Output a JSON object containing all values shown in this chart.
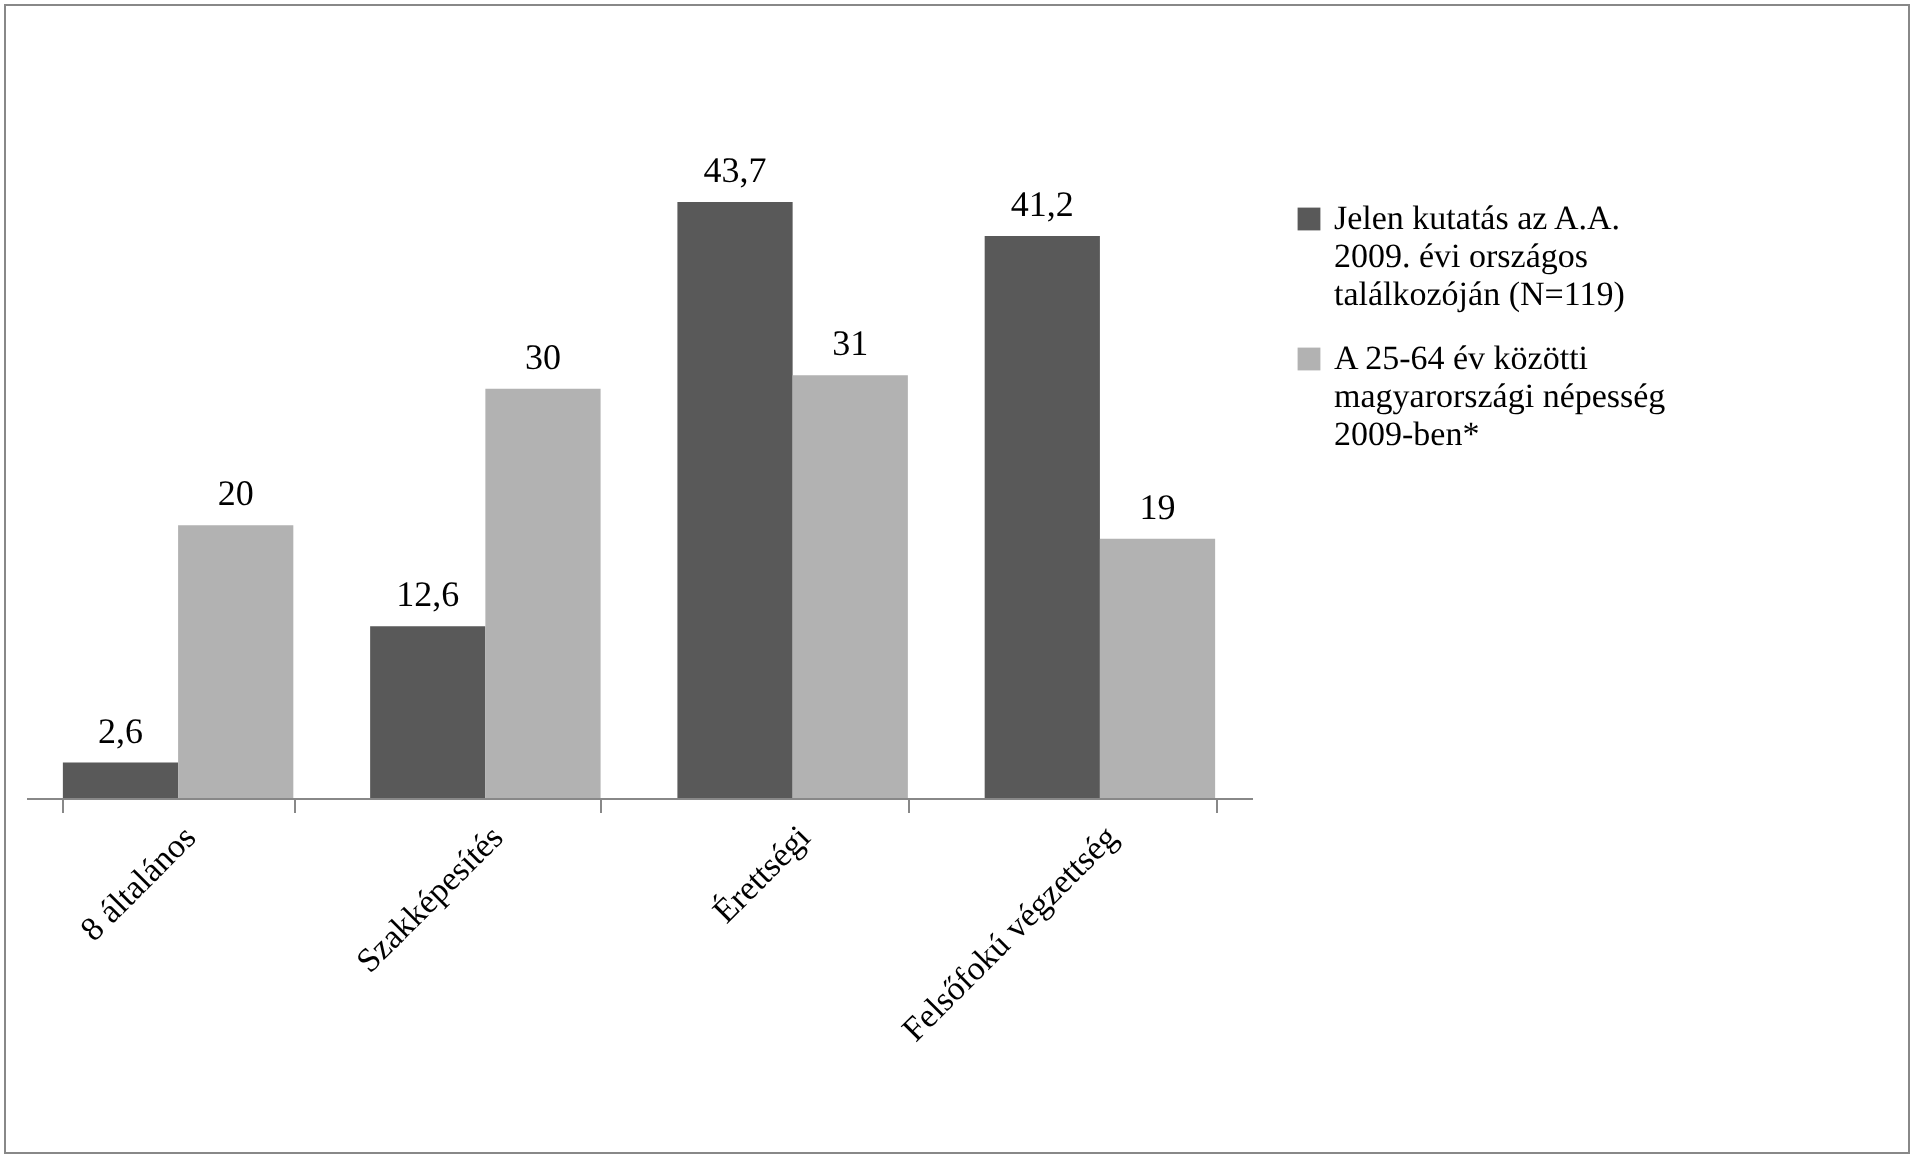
{
  "chart_data": {
    "type": "bar",
    "categories": [
      "8 általános",
      "Szakképesítés",
      "Érettségi",
      "Felsőfokú végzettség"
    ],
    "series": [
      {
        "name": "Jelen kutatás az A.A. 2009. évi országos találkozóján (N=119)",
        "color": "#595959",
        "values": [
          2.6,
          12.6,
          43.7,
          41.2
        ],
        "value_labels": [
          "2,6",
          "12,6",
          "43,7",
          "41,2"
        ]
      },
      {
        "name": "A 25-64 év közötti magyarországi népesség 2009-ben*",
        "color": "#b2b2b2",
        "values": [
          20,
          30,
          31,
          19
        ],
        "value_labels": [
          "20",
          "30",
          "31",
          "19"
        ]
      }
    ],
    "legend": "right",
    "grid": false
  }
}
